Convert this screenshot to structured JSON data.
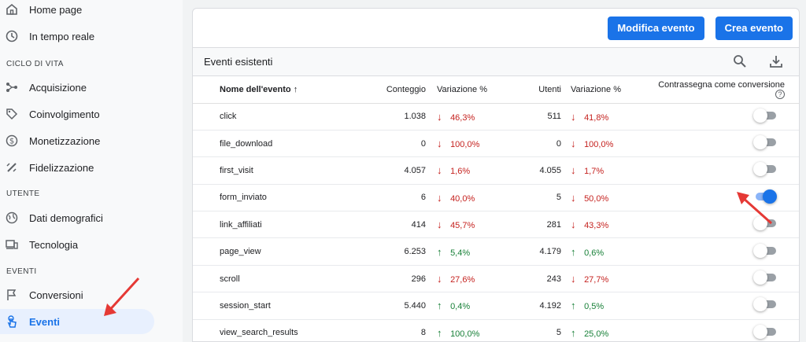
{
  "sidebar": {
    "top_items": [
      {
        "label": "Home page",
        "icon": "home-icon"
      },
      {
        "label": "In tempo reale",
        "icon": "clock-icon"
      }
    ],
    "sections": [
      {
        "title": "CICLO DI VITA",
        "items": [
          {
            "label": "Acquisizione",
            "icon": "acquisition-icon"
          },
          {
            "label": "Coinvolgimento",
            "icon": "tag-icon"
          },
          {
            "label": "Monetizzazione",
            "icon": "dollar-icon"
          },
          {
            "label": "Fidelizzazione",
            "icon": "retention-icon"
          }
        ]
      },
      {
        "title": "UTENTE",
        "items": [
          {
            "label": "Dati demografici",
            "icon": "globe-icon"
          },
          {
            "label": "Tecnologia",
            "icon": "devices-icon"
          }
        ]
      },
      {
        "title": "EVENTI",
        "items": [
          {
            "label": "Conversioni",
            "icon": "flag-icon"
          },
          {
            "label": "Eventi",
            "icon": "touch-icon",
            "active": true
          }
        ]
      }
    ]
  },
  "toolbar": {
    "edit_event_label": "Modifica evento",
    "create_event_label": "Crea evento"
  },
  "table": {
    "title": "Eventi esistenti",
    "columns": {
      "name": "Nome dell'evento",
      "count": "Conteggio",
      "count_change": "Variazione %",
      "users": "Utenti",
      "users_change": "Variazione %",
      "conversion": "Contrassegna come conversione"
    },
    "rows": [
      {
        "name": "click",
        "count": "1.038",
        "count_dir": "down",
        "count_change": "46,3%",
        "users": "511",
        "users_dir": "down",
        "users_change": "41,8%",
        "conversion": false
      },
      {
        "name": "file_download",
        "count": "0",
        "count_dir": "down",
        "count_change": "100,0%",
        "users": "0",
        "users_dir": "down",
        "users_change": "100,0%",
        "conversion": false
      },
      {
        "name": "first_visit",
        "count": "4.057",
        "count_dir": "down",
        "count_change": "1,6%",
        "users": "4.055",
        "users_dir": "down",
        "users_change": "1,7%",
        "conversion": false
      },
      {
        "name": "form_inviato",
        "count": "6",
        "count_dir": "down",
        "count_change": "40,0%",
        "users": "5",
        "users_dir": "down",
        "users_change": "50,0%",
        "conversion": true
      },
      {
        "name": "link_affiliati",
        "count": "414",
        "count_dir": "down",
        "count_change": "45,7%",
        "users": "281",
        "users_dir": "down",
        "users_change": "43,3%",
        "conversion": false
      },
      {
        "name": "page_view",
        "count": "6.253",
        "count_dir": "up",
        "count_change": "5,4%",
        "users": "4.179",
        "users_dir": "up",
        "users_change": "0,6%",
        "conversion": false
      },
      {
        "name": "scroll",
        "count": "296",
        "count_dir": "down",
        "count_change": "27,6%",
        "users": "243",
        "users_dir": "down",
        "users_change": "27,7%",
        "conversion": false
      },
      {
        "name": "session_start",
        "count": "5.440",
        "count_dir": "up",
        "count_change": "0,4%",
        "users": "4.192",
        "users_dir": "up",
        "users_change": "0,5%",
        "conversion": false
      },
      {
        "name": "view_search_results",
        "count": "8",
        "count_dir": "up",
        "count_change": "100,0%",
        "users": "5",
        "users_dir": "up",
        "users_change": "25,0%",
        "conversion": false
      }
    ]
  },
  "colors": {
    "accent": "#1a73e8",
    "negative": "#c5221f",
    "positive": "#188038",
    "annotation": "#e53935"
  }
}
